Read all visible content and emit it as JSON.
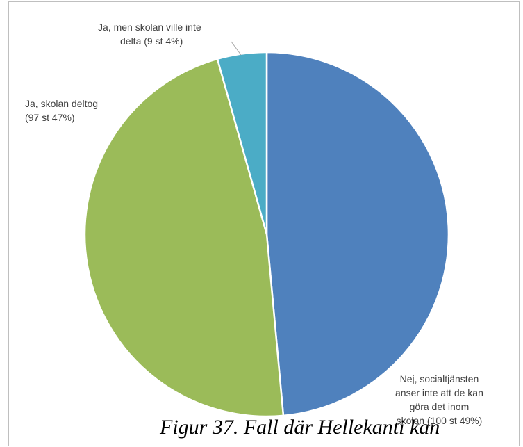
{
  "chart_data": {
    "type": "pie",
    "slices": [
      {
        "label_lines": [
          "Nej, socialtjänsten",
          "anser inte att de kan",
          "göra det inom",
          "skolan (100 st 49%)"
        ],
        "value": 100,
        "percent": 49,
        "color": "#4F81BD"
      },
      {
        "label_lines": [
          "Ja, skolan deltog",
          "(97 st 47%)"
        ],
        "value": 97,
        "percent": 47,
        "color": "#9BBB59"
      },
      {
        "label_lines": [
          "Ja, men skolan ville inte",
          "delta (9 st 4%)"
        ],
        "value": 9,
        "percent": 4,
        "color": "#4BACC6"
      }
    ],
    "legend": "none",
    "slice_border_color": "#ffffff"
  },
  "page": {
    "caption": "Figur 37. Fall där Hellekanti kan"
  }
}
